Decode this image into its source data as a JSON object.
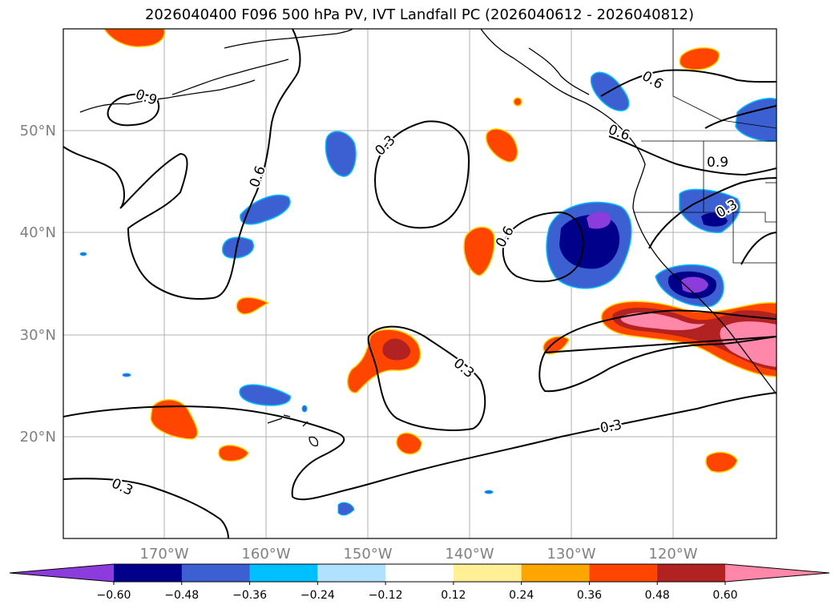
{
  "title": "2026040400 F096 500 hPa PV, IVT Landfall PC (2026040612 - 2026040812)",
  "map": {
    "lon_range": [
      -180,
      -110
    ],
    "lat_range": [
      10,
      60
    ],
    "lat_ticks": [
      {
        "value": 50,
        "label": "50°N"
      },
      {
        "value": 40,
        "label": "40°N"
      },
      {
        "value": 30,
        "label": "30°N"
      },
      {
        "value": 20,
        "label": "20°N"
      }
    ],
    "lon_ticks": [
      {
        "value": -170,
        "label": "170°W"
      },
      {
        "value": -160,
        "label": "160°W"
      },
      {
        "value": -150,
        "label": "150°W"
      },
      {
        "value": -140,
        "label": "140°W"
      },
      {
        "value": -130,
        "label": "130°W"
      },
      {
        "value": -120,
        "label": "120°W"
      }
    ],
    "contour_labels": [
      "0.9",
      "0.6",
      "0.3",
      "0.6",
      "0.6",
      "0.9",
      "0.3",
      "0.6",
      "0.3",
      "0.3",
      "0.3"
    ]
  },
  "colorbar": {
    "colors": [
      "#8c3cdc",
      "#00008b",
      "#3c5fd2",
      "#00bfff",
      "#b0e2ff",
      "#ffffff",
      "#fff096",
      "#ffa500",
      "#ff4500",
      "#b22222",
      "#ff88aa"
    ],
    "ticks": [
      "−0.60",
      "−0.48",
      "−0.36",
      "−0.24",
      "−0.12",
      "0.12",
      "0.24",
      "0.36",
      "0.48",
      "0.60"
    ]
  }
}
